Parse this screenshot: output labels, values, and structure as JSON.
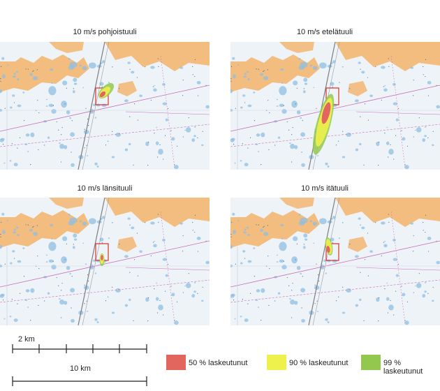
{
  "panels": [
    {
      "title": "10 m/s pohjoistuuli",
      "plume": "north"
    },
    {
      "title": "10 m/s etelätuuli",
      "plume": "south"
    },
    {
      "title": "10 m/s länsituuli",
      "plume": "west"
    },
    {
      "title": "10 m/s itätuuli",
      "plume": "east"
    }
  ],
  "scale": {
    "short_label": "2 km",
    "long_label": "10 km"
  },
  "legend": [
    {
      "label": "50 % laskeutunut",
      "color": "#e2655e"
    },
    {
      "label": "90 % laskeutunut",
      "color": "#eef04b"
    },
    {
      "label": "99 % laskeutunut",
      "color": "#93c84f"
    }
  ],
  "colors": {
    "land": "#f2b36a",
    "water": "#eef3f8",
    "shoal": "#8fbfe3",
    "route": "#c76fb3",
    "site_box": "#d9302b"
  }
}
